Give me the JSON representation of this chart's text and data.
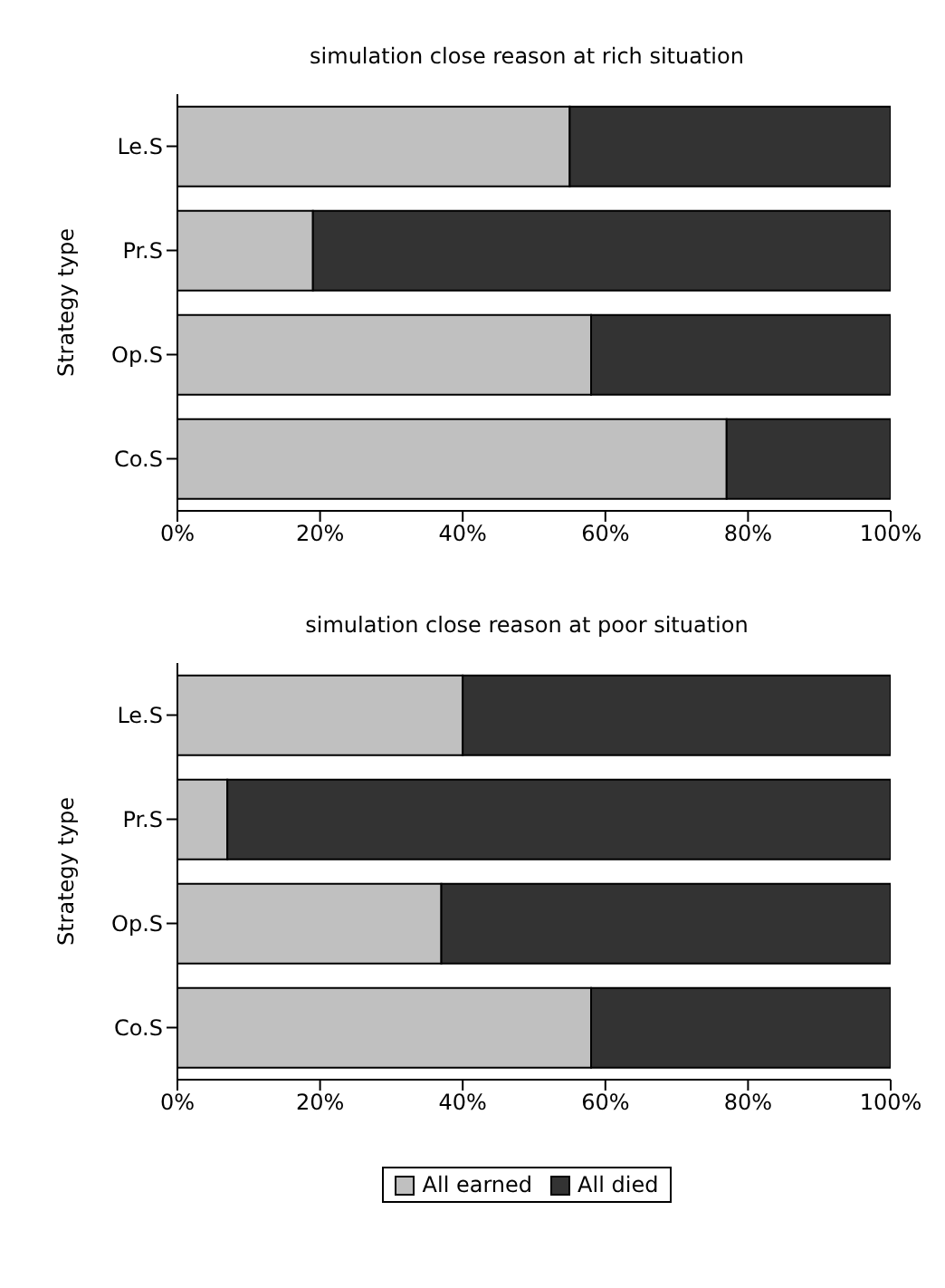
{
  "chart_data": [
    {
      "type": "bar",
      "orientation": "horizontal",
      "stacked": true,
      "title": "simulation close reason at rich situation",
      "ylabel": "Strategy type",
      "categories": [
        "Le.S",
        "Pr.S",
        "Op.S",
        "Co.S"
      ],
      "series": [
        {
          "color": "#c0c0c0",
          "values": [
            55,
            19,
            58,
            77
          ]
        },
        {
          "color": "#333333",
          "values": [
            45,
            81,
            42,
            23
          ]
        }
      ],
      "xlim": [
        0,
        100
      ],
      "xticks": [
        {
          "value": 0,
          "label": "0%"
        },
        {
          "value": 20,
          "label": "20%"
        },
        {
          "value": 40,
          "label": "40%"
        },
        {
          "value": 60,
          "label": "60%"
        },
        {
          "value": 80,
          "label": "80%"
        },
        {
          "value": 100,
          "label": "100%"
        }
      ],
      "grid": false
    },
    {
      "type": "bar",
      "orientation": "horizontal",
      "stacked": true,
      "title": "simulation close reason at poor situation",
      "ylabel": "Strategy type",
      "categories": [
        "Le.S",
        "Pr.S",
        "Op.S",
        "Co.S"
      ],
      "series": [
        {
          "name": "All earned",
          "color": "#c0c0c0",
          "values": [
            40,
            7,
            37,
            58
          ]
        },
        {
          "name": "All died",
          "color": "#333333",
          "values": [
            60,
            93,
            63,
            42
          ]
        }
      ],
      "xlim": [
        0,
        100
      ],
      "xticks": [
        {
          "value": 0,
          "label": "0%"
        },
        {
          "value": 20,
          "label": "20%"
        },
        {
          "value": 40,
          "label": "40%"
        },
        {
          "value": 60,
          "label": "60%"
        },
        {
          "value": 80,
          "label": "80%"
        },
        {
          "value": 100,
          "label": "100%"
        }
      ],
      "grid": false,
      "legend": "bottom"
    }
  ]
}
